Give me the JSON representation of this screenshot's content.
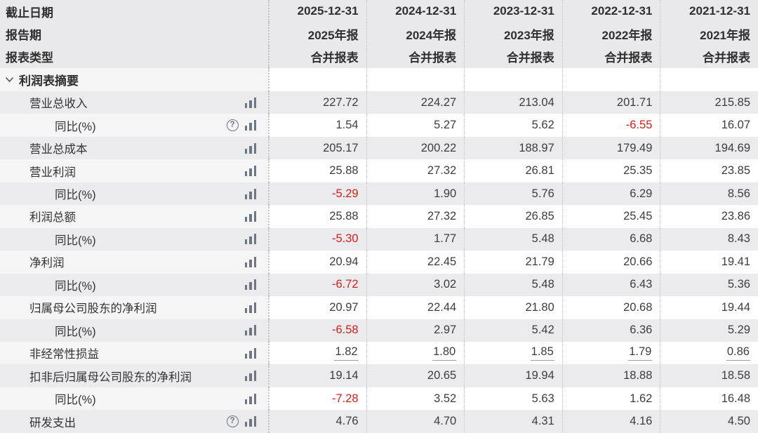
{
  "header": {
    "row_labels": [
      "截止日期",
      "报告期",
      "报表类型"
    ],
    "columns": [
      {
        "date": "2025-12-31",
        "period": "2025年报",
        "type": "合并报表"
      },
      {
        "date": "2024-12-31",
        "period": "2024年报",
        "type": "合并报表"
      },
      {
        "date": "2023-12-31",
        "period": "2023年报",
        "type": "合并报表"
      },
      {
        "date": "2022-12-31",
        "period": "2022年报",
        "type": "合并报表"
      },
      {
        "date": "2021-12-31",
        "period": "2021年报",
        "type": "合并报表"
      }
    ]
  },
  "section": {
    "title": "利润表摘要",
    "collapse_icon": "chevron-down-icon"
  },
  "rows": [
    {
      "label": "营业总收入",
      "level": 1,
      "help": false,
      "chart": true,
      "underline": false,
      "values": [
        "227.72",
        "224.27",
        "213.04",
        "201.71",
        "215.85"
      ]
    },
    {
      "label": "同比(%)",
      "level": 2,
      "help": true,
      "chart": true,
      "underline": false,
      "values": [
        "1.54",
        "5.27",
        "5.62",
        "-6.55",
        "16.07"
      ]
    },
    {
      "label": "营业总成本",
      "level": 1,
      "help": false,
      "chart": true,
      "underline": false,
      "values": [
        "205.17",
        "200.22",
        "188.97",
        "179.49",
        "194.69"
      ]
    },
    {
      "label": "营业利润",
      "level": 1,
      "help": false,
      "chart": true,
      "underline": false,
      "values": [
        "25.88",
        "27.32",
        "26.81",
        "25.35",
        "23.85"
      ]
    },
    {
      "label": "同比(%)",
      "level": 2,
      "help": false,
      "chart": true,
      "underline": false,
      "values": [
        "-5.29",
        "1.90",
        "5.76",
        "6.29",
        "8.56"
      ]
    },
    {
      "label": "利润总额",
      "level": 1,
      "help": false,
      "chart": true,
      "underline": false,
      "values": [
        "25.88",
        "27.32",
        "26.85",
        "25.45",
        "23.86"
      ]
    },
    {
      "label": "同比(%)",
      "level": 2,
      "help": false,
      "chart": true,
      "underline": false,
      "values": [
        "-5.30",
        "1.77",
        "5.48",
        "6.68",
        "8.43"
      ]
    },
    {
      "label": "净利润",
      "level": 1,
      "help": false,
      "chart": true,
      "underline": false,
      "values": [
        "20.94",
        "22.45",
        "21.79",
        "20.66",
        "19.41"
      ]
    },
    {
      "label": "同比(%)",
      "level": 2,
      "help": false,
      "chart": true,
      "underline": false,
      "values": [
        "-6.72",
        "3.02",
        "5.48",
        "6.43",
        "5.36"
      ]
    },
    {
      "label": "归属母公司股东的净利润",
      "level": 1,
      "help": false,
      "chart": true,
      "underline": false,
      "values": [
        "20.97",
        "22.44",
        "21.80",
        "20.68",
        "19.44"
      ]
    },
    {
      "label": "同比(%)",
      "level": 2,
      "help": false,
      "chart": true,
      "underline": false,
      "values": [
        "-6.58",
        "2.97",
        "5.42",
        "6.36",
        "5.29"
      ]
    },
    {
      "label": "非经常性损益",
      "level": 1,
      "help": false,
      "chart": true,
      "underline": true,
      "values": [
        "1.82",
        "1.80",
        "1.85",
        "1.79",
        "0.86"
      ]
    },
    {
      "label": "扣非后归属母公司股东的净利润",
      "level": 1,
      "help": false,
      "chart": true,
      "underline": false,
      "values": [
        "19.14",
        "20.65",
        "19.94",
        "18.88",
        "18.58"
      ]
    },
    {
      "label": "同比(%)",
      "level": 2,
      "help": false,
      "chart": true,
      "underline": false,
      "values": [
        "-7.28",
        "3.52",
        "5.63",
        "1.62",
        "16.48"
      ]
    },
    {
      "label": "研发支出",
      "level": 1,
      "help": true,
      "chart": true,
      "underline": false,
      "values": [
        "4.76",
        "4.70",
        "4.31",
        "4.16",
        "4.50"
      ]
    }
  ],
  "icons": {
    "help": "help-icon",
    "chart": "bar-chart-icon",
    "collapse": "chevron-down-icon"
  },
  "colors": {
    "negative_value": "#d71e19",
    "header_background": "#e9e9eb",
    "shaded_row_background": "#ebebed",
    "label_column_tint": "#f5f5f6",
    "icon_gray": "#6e7681",
    "dotted_separator": "#c2c2c6",
    "text": "#333333"
  }
}
